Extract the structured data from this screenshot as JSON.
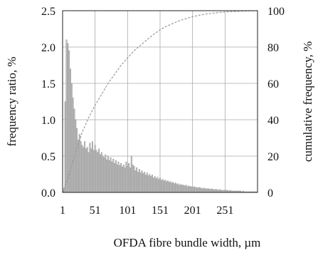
{
  "chart_data": {
    "type": "bar",
    "title": "",
    "xlabel": "OFDA fibre bundle width, µm",
    "ylabel": "frequency ratio, %",
    "y2label": "cumulative frequency, %",
    "xlim": [
      1,
      301
    ],
    "ylim": [
      0,
      2.5
    ],
    "y2lim": [
      0,
      100
    ],
    "x_ticks": [
      1,
      51,
      101,
      151,
      201,
      251
    ],
    "y_ticks": [
      0.0,
      0.5,
      1.0,
      1.5,
      2.0,
      2.5
    ],
    "y_tick_labels": [
      "0.0",
      "0.5",
      "1.0",
      "1.5",
      "2.0",
      "2.5"
    ],
    "y2_ticks": [
      0,
      20,
      40,
      60,
      80,
      100
    ],
    "grid": true,
    "bar_color": "#bfbfbf",
    "line_color": "#999999",
    "series": [
      {
        "type": "bar",
        "axis": "left",
        "x": [
          3,
          5,
          7,
          9,
          11,
          13,
          15,
          17,
          19,
          21,
          23,
          25,
          27,
          29,
          31,
          33,
          35,
          37,
          39,
          41,
          43,
          45,
          47,
          49,
          51,
          53,
          55,
          57,
          59,
          61,
          63,
          65,
          67,
          69,
          71,
          73,
          75,
          77,
          79,
          81,
          83,
          85,
          87,
          89,
          91,
          93,
          95,
          97,
          99,
          101,
          103,
          105,
          107,
          109,
          111,
          113,
          115,
          117,
          119,
          121,
          123,
          125,
          127,
          129,
          131,
          133,
          135,
          137,
          139,
          141,
          143,
          145,
          147,
          149,
          151,
          153,
          155,
          157,
          159,
          161,
          163,
          165,
          167,
          169,
          171,
          173,
          175,
          177,
          179,
          181,
          183,
          185,
          187,
          189,
          191,
          193,
          195,
          197,
          199,
          201,
          203,
          205,
          207,
          209,
          211,
          213,
          215,
          217,
          219,
          221,
          223,
          225,
          227,
          229,
          231,
          233,
          235,
          237,
          239,
          241,
          243,
          245,
          247,
          249,
          251,
          253,
          255,
          257,
          259,
          261,
          263,
          265,
          267,
          269,
          271,
          273,
          275,
          277,
          279,
          281,
          283,
          285,
          287,
          289,
          291,
          293,
          295,
          297,
          299
        ],
        "values": [
          0.05,
          1.25,
          2.1,
          2.05,
          1.95,
          1.7,
          1.5,
          1.3,
          1.15,
          1.0,
          0.88,
          0.72,
          0.8,
          0.7,
          0.65,
          0.62,
          0.7,
          0.6,
          0.62,
          0.55,
          0.68,
          0.6,
          0.7,
          0.58,
          0.65,
          0.58,
          0.55,
          0.6,
          0.52,
          0.55,
          0.5,
          0.48,
          0.52,
          0.45,
          0.5,
          0.44,
          0.48,
          0.42,
          0.46,
          0.4,
          0.44,
          0.38,
          0.42,
          0.37,
          0.4,
          0.35,
          0.38,
          0.34,
          0.42,
          0.36,
          0.4,
          0.34,
          0.5,
          0.38,
          0.36,
          0.3,
          0.34,
          0.28,
          0.32,
          0.27,
          0.3,
          0.26,
          0.28,
          0.24,
          0.27,
          0.23,
          0.25,
          0.22,
          0.24,
          0.2,
          0.22,
          0.19,
          0.21,
          0.18,
          0.2,
          0.17,
          0.18,
          0.16,
          0.17,
          0.15,
          0.16,
          0.14,
          0.15,
          0.13,
          0.14,
          0.12,
          0.13,
          0.11,
          0.12,
          0.1,
          0.11,
          0.1,
          0.1,
          0.09,
          0.1,
          0.08,
          0.09,
          0.08,
          0.08,
          0.07,
          0.08,
          0.07,
          0.07,
          0.06,
          0.07,
          0.06,
          0.06,
          0.05,
          0.06,
          0.05,
          0.05,
          0.05,
          0.05,
          0.04,
          0.05,
          0.04,
          0.04,
          0.04,
          0.04,
          0.03,
          0.04,
          0.03,
          0.03,
          0.03,
          0.03,
          0.03,
          0.03,
          0.02,
          0.03,
          0.02,
          0.02,
          0.02,
          0.02,
          0.02,
          0.02,
          0.02,
          0.02,
          0.01,
          0.02,
          0.01,
          0.01,
          0.01,
          0.01,
          0.01,
          0.01,
          0.01,
          0.01,
          0.01,
          0.01
        ]
      },
      {
        "type": "line",
        "axis": "right",
        "x": [
          1,
          11,
          21,
          31,
          41,
          51,
          61,
          71,
          81,
          91,
          101,
          111,
          121,
          131,
          141,
          151,
          161,
          171,
          181,
          191,
          201,
          211,
          221,
          231,
          241,
          251,
          261,
          271,
          281,
          291,
          301
        ],
        "values": [
          0,
          10,
          22,
          33,
          41,
          48,
          54,
          60,
          65,
          70,
          74,
          78,
          81,
          84,
          87,
          89.5,
          91.5,
          93,
          94.5,
          95.7,
          96.7,
          97.5,
          98.1,
          98.6,
          99.0,
          99.3,
          99.5,
          99.7,
          99.8,
          99.9,
          100
        ]
      }
    ]
  }
}
